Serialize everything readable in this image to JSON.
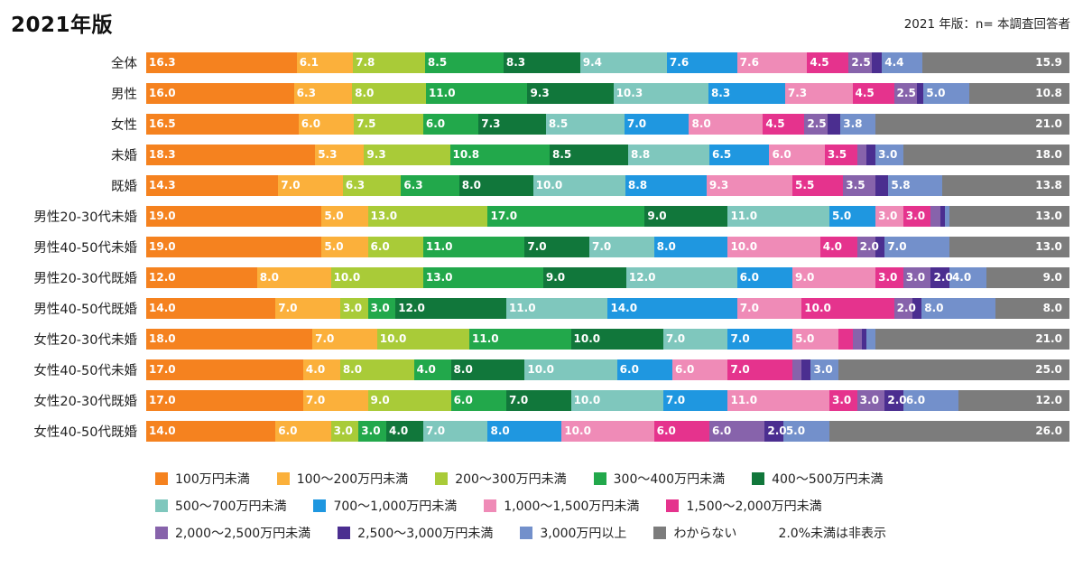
{
  "title": "2021年版",
  "header_note": "2021 年版：n= 本調査回答者",
  "legend_note": "2.0%未満は非表示",
  "chart_data": {
    "type": "bar",
    "variant": "horizontal-stacked",
    "unit": "percent",
    "axis_range": [
      0,
      100
    ],
    "grid": false,
    "legend_position": "bottom",
    "label_threshold": 2.0,
    "series": [
      {
        "name": "100万円未満",
        "color": "#F5821F"
      },
      {
        "name": "100〜200万円未満",
        "color": "#FBB03B"
      },
      {
        "name": "200〜300万円未満",
        "color": "#A9CB38"
      },
      {
        "name": "300〜400万円未満",
        "color": "#22A84B"
      },
      {
        "name": "400〜500万円未満",
        "color": "#11773B"
      },
      {
        "name": "500〜700万円未満",
        "color": "#7FC7BD"
      },
      {
        "name": "700〜1,000万円未満",
        "color": "#1F97E0"
      },
      {
        "name": "1,000〜1,500万円未満",
        "color": "#EF8BB7"
      },
      {
        "name": "1,500〜2,000万円未満",
        "color": "#E5338D"
      },
      {
        "name": "2,000〜2,500万円未満",
        "color": "#8763AB"
      },
      {
        "name": "2,500〜3,000万円未満",
        "color": "#4B2E90"
      },
      {
        "name": "3,000万円以上",
        "color": "#7390CB"
      },
      {
        "name": "わからない",
        "color": "#7C7C7C"
      }
    ],
    "rows": [
      {
        "category": "全体",
        "values": [
          16.3,
          6.1,
          7.8,
          8.5,
          8.3,
          9.4,
          7.6,
          7.6,
          4.5,
          2.5,
          1.1,
          4.4,
          15.9
        ]
      },
      {
        "category": "男性",
        "values": [
          16.0,
          6.3,
          8.0,
          11.0,
          9.3,
          10.3,
          8.3,
          7.3,
          4.5,
          2.5,
          0.7,
          5.0,
          10.8
        ]
      },
      {
        "category": "女性",
        "values": [
          16.5,
          6.0,
          7.5,
          6.0,
          7.3,
          8.5,
          7.0,
          8.0,
          4.5,
          2.5,
          1.4,
          3.8,
          21.0
        ]
      },
      {
        "category": "未婚",
        "values": [
          18.3,
          5.3,
          9.3,
          10.8,
          8.5,
          8.8,
          6.5,
          6.0,
          3.5,
          1.0,
          1.0,
          3.0,
          18.0
        ]
      },
      {
        "category": "既婚",
        "values": [
          14.3,
          7.0,
          6.3,
          6.3,
          8.0,
          10.0,
          8.8,
          9.3,
          5.5,
          3.5,
          1.4,
          5.8,
          13.8
        ]
      },
      {
        "category": "男性20-30代未婚",
        "values": [
          19.0,
          5.0,
          13.0,
          17.0,
          9.0,
          11.0,
          5.0,
          3.0,
          3.0,
          1.0,
          0.5,
          0.5,
          13.0
        ]
      },
      {
        "category": "男性40-50代未婚",
        "values": [
          19.0,
          5.0,
          6.0,
          11.0,
          7.0,
          7.0,
          8.0,
          10.0,
          4.0,
          2.0,
          1.0,
          7.0,
          13.0
        ]
      },
      {
        "category": "男性20-30代既婚",
        "values": [
          12.0,
          8.0,
          10.0,
          13.0,
          9.0,
          12.0,
          6.0,
          9.0,
          3.0,
          3.0,
          2.0,
          4.0,
          9.0
        ]
      },
      {
        "category": "男性40-50代既婚",
        "values": [
          14.0,
          7.0,
          3.0,
          3.0,
          12.0,
          11.0,
          14.0,
          7.0,
          10.0,
          2.0,
          1.0,
          8.0,
          8.0
        ]
      },
      {
        "category": "女性20-30代未婚",
        "values": [
          18.0,
          7.0,
          10.0,
          11.0,
          10.0,
          7.0,
          7.0,
          5.0,
          1.5,
          1.0,
          0.5,
          1.0,
          21.0
        ]
      },
      {
        "category": "女性40-50代未婚",
        "values": [
          17.0,
          4.0,
          8.0,
          4.0,
          8.0,
          10.0,
          6.0,
          6.0,
          7.0,
          1.0,
          1.0,
          3.0,
          25.0
        ]
      },
      {
        "category": "女性20-30代既婚",
        "values": [
          17.0,
          7.0,
          9.0,
          6.0,
          7.0,
          10.0,
          7.0,
          11.0,
          3.0,
          3.0,
          2.0,
          6.0,
          12.0
        ]
      },
      {
        "category": "女性40-50代既婚",
        "values": [
          14.0,
          6.0,
          3.0,
          3.0,
          4.0,
          7.0,
          8.0,
          10.0,
          6.0,
          6.0,
          2.0,
          5.0,
          26.0
        ]
      }
    ]
  }
}
